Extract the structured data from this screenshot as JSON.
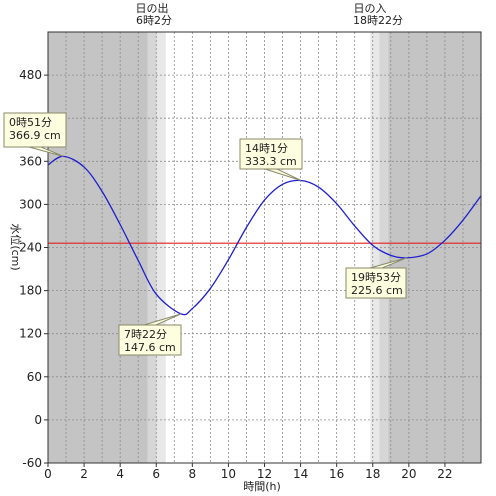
{
  "chart_data": {
    "type": "line",
    "xlabel": "時間(h)",
    "ylabel": "水位(cm)",
    "xlim": [
      0,
      24
    ],
    "ylim": [
      -60,
      540
    ],
    "x_ticks": [
      0,
      2,
      4,
      6,
      8,
      10,
      12,
      14,
      16,
      18,
      20,
      22
    ],
    "x_tick_labels": [
      "0",
      "2",
      "4",
      "6",
      "8",
      "10",
      "12",
      "14",
      "16",
      "18",
      "20",
      "22"
    ],
    "y_ticks": [
      -60,
      0,
      60,
      120,
      180,
      240,
      300,
      360,
      420,
      480
    ],
    "y_tick_labels": [
      "-60",
      "0",
      "60",
      "120",
      "180",
      "240",
      "300",
      "360",
      "420",
      "480"
    ],
    "grid": true,
    "reference_line": {
      "y": 246,
      "color": "#e02020"
    },
    "sunrise": {
      "title": "日の出",
      "time_label": "6時2分",
      "hour": 6.033
    },
    "sunset": {
      "title": "日の入",
      "time_label": "18時22分",
      "hour": 18.367
    },
    "series": [
      {
        "color": "#1f1fd0",
        "x": [
          0,
          0.85,
          2,
          3,
          4,
          5,
          6,
          7.37,
          8,
          9,
          10,
          11,
          12,
          13,
          14.02,
          15,
          16,
          17,
          18,
          19,
          19.88,
          21,
          22,
          23,
          24
        ],
        "y": [
          355,
          366.9,
          352,
          318,
          272,
          222,
          175,
          147.6,
          155,
          183,
          223,
          268,
          306,
          328,
          333.3,
          324,
          301,
          270,
          243,
          229,
          225.6,
          231,
          250,
          278,
          312
        ]
      }
    ],
    "annotations": [
      {
        "time": "0時51分",
        "value": "366.9 cm",
        "x": 0.85,
        "y": 366.9
      },
      {
        "time": "7時22分",
        "value": "147.6 cm",
        "x": 7.37,
        "y": 147.6
      },
      {
        "time": "14時1分",
        "value": "333.3 cm",
        "x": 14.02,
        "y": 333.3
      },
      {
        "time": "19時53分",
        "value": "225.6 cm",
        "x": 19.88,
        "y": 225.6
      }
    ],
    "colors": {
      "night": "#c4c4c4",
      "twilight_outer": "#d6d6d6",
      "twilight_inner": "#e8e8e8",
      "day": "#ffffff",
      "callout_fill": "#fdfde0",
      "callout_border": "#8a8a6a"
    }
  }
}
